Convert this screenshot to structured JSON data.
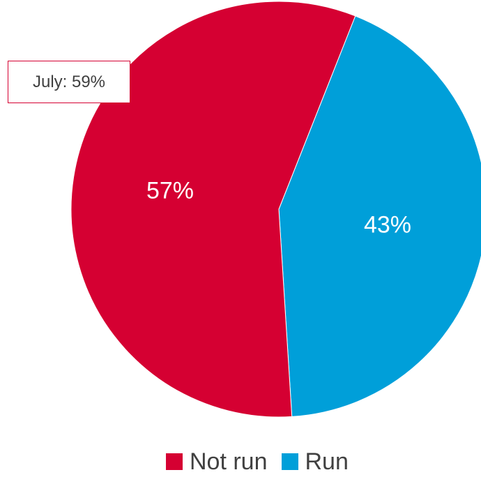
{
  "chart_data": {
    "type": "pie",
    "title": "",
    "categories": [
      "Not run",
      "Run"
    ],
    "values": [
      57,
      43
    ],
    "labels": [
      "57%",
      "43%"
    ],
    "colors": [
      "#d50032",
      "#009fd9"
    ],
    "legend": {
      "placement": "bottom",
      "entries": [
        "Not run",
        "Run"
      ]
    },
    "annotation": {
      "text": "July: 59%"
    }
  }
}
